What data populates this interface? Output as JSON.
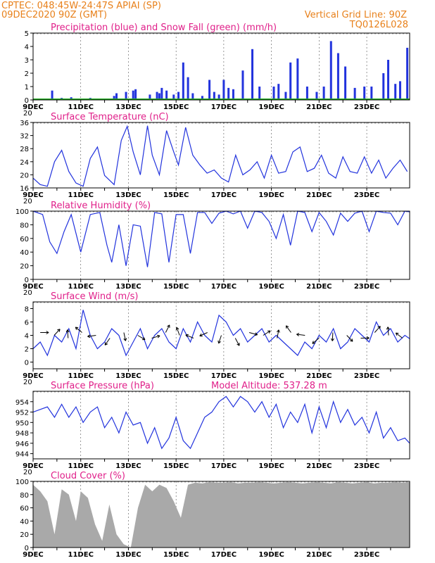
{
  "header": {
    "left_line1": "CPTEC:  048:45W-24:47S  APIAI (SP)",
    "left_line2": "09DEC2020 90Z (GMT)",
    "right_line1": "Vertical Grid Line: 90Z",
    "right_line2": "TQ0126L028"
  },
  "colors": {
    "header": "#e8801a",
    "panel_title": "#e0208a",
    "line": "#2233dd",
    "snow": "#22aa22",
    "cloud": "#a9a9a9"
  },
  "x_axis": {
    "labels": [
      "9DEC",
      "11DEC",
      "13DEC",
      "15DEC",
      "17DEC",
      "19DEC",
      "21DEC",
      "23DEC"
    ],
    "stub_label": "20"
  },
  "chart_data": [
    {
      "type": "bar",
      "title": "Precipitation (blue) and Snow Fall (green) (mm/h)",
      "ylim": [
        0,
        5
      ],
      "yticks": [
        0,
        1,
        2,
        3,
        4,
        5
      ],
      "series": [
        {
          "name": "Precipitation",
          "color": "#2233dd",
          "x": [
            0.8,
            1.2,
            1.6,
            1.8,
            2.4,
            2.9,
            3.4,
            3.5,
            3.9,
            4.2,
            4.3,
            4.9,
            5.2,
            5.3,
            5.4,
            5.6,
            5.9,
            6.1,
            6.3,
            6.5,
            6.7,
            7.1,
            7.4,
            7.6,
            7.8,
            8.0,
            8.2,
            8.4,
            8.8,
            9.2,
            9.5,
            10.1,
            10.3,
            10.6,
            10.8,
            11.1,
            11.5,
            11.9,
            12.2,
            12.5,
            12.8,
            13.1,
            13.5,
            13.9,
            14.2,
            14.7,
            14.9,
            15.2,
            15.4,
            15.7
          ],
          "values": [
            0.7,
            0.15,
            0.2,
            0.1,
            0.15,
            0.1,
            0.3,
            0.5,
            0.6,
            0.7,
            0.8,
            0.4,
            0.6,
            0.5,
            0.9,
            0.7,
            0.4,
            0.6,
            2.8,
            1.7,
            0.5,
            0.3,
            1.5,
            0.6,
            0.4,
            1.5,
            0.9,
            0.8,
            2.2,
            3.8,
            1.0,
            1.0,
            1.2,
            0.6,
            2.8,
            3.1,
            1.0,
            0.6,
            1.0,
            4.4,
            3.5,
            2.5,
            0.9,
            1.0,
            1.0,
            2.0,
            3.0,
            1.2,
            1.4,
            3.9
          ]
        },
        {
          "name": "Snow Fall",
          "color": "#22aa22",
          "x": [
            0,
            15.8
          ],
          "values": [
            0,
            0
          ]
        }
      ]
    },
    {
      "type": "line",
      "title": "Surface Temperature (nC)",
      "ylim": [
        16,
        36
      ],
      "yticks": [
        16,
        20,
        24,
        28,
        32,
        36
      ],
      "series": [
        {
          "name": "Temperature",
          "color": "#2233dd",
          "x": [
            0,
            0.3,
            0.6,
            0.9,
            1.2,
            1.5,
            1.8,
            2.1,
            2.4,
            2.7,
            3.0,
            3.4,
            3.7,
            3.95,
            4.2,
            4.5,
            4.8,
            5.0,
            5.3,
            5.6,
            5.9,
            6.1,
            6.4,
            6.7,
            7.0,
            7.3,
            7.6,
            7.9,
            8.2,
            8.5,
            8.8,
            9.1,
            9.4,
            9.7,
            10.0,
            10.3,
            10.6,
            10.9,
            11.2,
            11.5,
            11.8,
            12.1,
            12.4,
            12.7,
            13.0,
            13.3,
            13.6,
            13.9,
            14.2,
            14.5,
            14.8,
            15.1,
            15.4,
            15.7
          ],
          "values": [
            19,
            17,
            16.5,
            24,
            27.5,
            21,
            17.5,
            16.5,
            25,
            28.5,
            19.8,
            17,
            30.5,
            34.8,
            27,
            20,
            35,
            26,
            20,
            33.5,
            27,
            23,
            34.5,
            26,
            23,
            20.5,
            21.5,
            19,
            17.8,
            26,
            20,
            21.5,
            24,
            19,
            26,
            20.5,
            21,
            27,
            28.5,
            21,
            22,
            26,
            20.5,
            19,
            25.5,
            21,
            20.5,
            25.5,
            20.5,
            24.5,
            19,
            22,
            24.5,
            21
          ]
        }
      ]
    },
    {
      "type": "line",
      "title": "Relative Humidity (%)",
      "ylim": [
        0,
        100
      ],
      "yticks": [
        0,
        20,
        40,
        60,
        80,
        100
      ],
      "series": [
        {
          "name": "Relative Humidity",
          "color": "#2233dd",
          "x": [
            0,
            0.4,
            0.7,
            1.0,
            1.3,
            1.6,
            2.0,
            2.4,
            2.8,
            3.1,
            3.3,
            3.6,
            3.9,
            4.2,
            4.5,
            4.8,
            5.1,
            5.4,
            5.7,
            6.0,
            6.3,
            6.6,
            6.9,
            7.2,
            7.5,
            7.8,
            8.1,
            8.4,
            8.7,
            9.0,
            9.3,
            9.6,
            9.9,
            10.2,
            10.5,
            10.8,
            11.1,
            11.4,
            11.7,
            12.0,
            12.3,
            12.6,
            12.9,
            13.2,
            13.5,
            13.8,
            14.1,
            14.4,
            14.7,
            15.0,
            15.3,
            15.6,
            15.8
          ],
          "values": [
            100,
            95,
            55,
            38,
            70,
            95,
            40,
            95,
            98,
            50,
            25,
            80,
            20,
            80,
            78,
            18,
            98,
            96,
            25,
            95,
            95,
            38,
            98,
            98,
            82,
            97,
            100,
            96,
            100,
            75,
            100,
            98,
            85,
            60,
            95,
            50,
            100,
            98,
            70,
            98,
            85,
            65,
            97,
            85,
            97,
            100,
            70,
            100,
            98,
            97,
            80,
            100,
            99
          ]
        }
      ]
    },
    {
      "type": "line",
      "title": "Surface Wind (m/s)",
      "ylim": [
        -1,
        9
      ],
      "yticks": [
        0,
        2,
        4,
        6,
        8
      ],
      "series": [
        {
          "name": "Wind speed",
          "color": "#2233dd",
          "x": [
            0,
            0.3,
            0.6,
            0.9,
            1.2,
            1.5,
            1.8,
            2.1,
            2.4,
            2.7,
            3.0,
            3.3,
            3.6,
            3.9,
            4.2,
            4.5,
            4.8,
            5.1,
            5.4,
            5.7,
            6.0,
            6.3,
            6.6,
            6.9,
            7.2,
            7.5,
            7.8,
            8.1,
            8.4,
            8.7,
            9.0,
            9.3,
            9.6,
            9.9,
            10.2,
            10.5,
            10.8,
            11.1,
            11.4,
            11.7,
            12.0,
            12.3,
            12.6,
            12.9,
            13.2,
            13.5,
            13.8,
            14.1,
            14.4,
            14.7,
            15.0,
            15.3,
            15.6,
            15.8
          ],
          "values": [
            2,
            3,
            1,
            4,
            3,
            5,
            2,
            7.8,
            4,
            2,
            3,
            5,
            4,
            1,
            3,
            5,
            2,
            4,
            5,
            3,
            2,
            5,
            3,
            6,
            4,
            3,
            7,
            6,
            4,
            5,
            3,
            4,
            5,
            3,
            4,
            3,
            2,
            1,
            3,
            2,
            4,
            3,
            5,
            2,
            3,
            5,
            4,
            3,
            6,
            4,
            5,
            3,
            4,
            3.5
          ]
        }
      ],
      "arrow_count": 27
    },
    {
      "type": "line",
      "title": "Surface Pressure (hPa)",
      "subtitle": "Model Altitude: 537.28 m",
      "ylim": [
        943,
        956
      ],
      "yticks": [
        944,
        946,
        948,
        950,
        952,
        954
      ],
      "series": [
        {
          "name": "Pressure",
          "color": "#2233dd",
          "x": [
            0,
            0.3,
            0.6,
            0.9,
            1.2,
            1.5,
            1.8,
            2.1,
            2.4,
            2.7,
            3.0,
            3.3,
            3.6,
            3.9,
            4.2,
            4.5,
            4.8,
            5.1,
            5.4,
            5.7,
            6.0,
            6.3,
            6.6,
            6.9,
            7.2,
            7.5,
            7.8,
            8.1,
            8.4,
            8.7,
            9.0,
            9.3,
            9.6,
            9.9,
            10.2,
            10.5,
            10.8,
            11.1,
            11.4,
            11.7,
            12.0,
            12.3,
            12.6,
            12.9,
            13.2,
            13.5,
            13.8,
            14.1,
            14.4,
            14.7,
            15.0,
            15.3,
            15.6,
            15.8
          ],
          "values": [
            952,
            952.5,
            953,
            951,
            953.5,
            951,
            953,
            950,
            952,
            953,
            949,
            951,
            948,
            952,
            949.5,
            950,
            946,
            949,
            945,
            947,
            951,
            946.5,
            945,
            948,
            951,
            952,
            954,
            955,
            953,
            955,
            954,
            952,
            954,
            951,
            953.5,
            949,
            952,
            950,
            953.5,
            948,
            953,
            949,
            954,
            950,
            952.5,
            949.5,
            951,
            948,
            952,
            947,
            949,
            946.5,
            947,
            946
          ]
        }
      ]
    },
    {
      "type": "area",
      "title": "Cloud Cover (%)",
      "ylim": [
        0,
        100
      ],
      "yticks": [
        0,
        20,
        40,
        60,
        80,
        100
      ],
      "series": [
        {
          "name": "Cloud Cover",
          "color": "#a9a9a9",
          "x": [
            0,
            0.3,
            0.6,
            0.9,
            1.2,
            1.5,
            1.8,
            2.0,
            2.3,
            2.6,
            2.9,
            3.2,
            3.5,
            3.8,
            4.1,
            4.4,
            4.7,
            5.0,
            5.3,
            5.6,
            5.9,
            6.2,
            6.5,
            6.8,
            7.1,
            7.4,
            7.7,
            8.0,
            8.3,
            8.6,
            8.9,
            9.2,
            9.5,
            9.8,
            10.1,
            10.4,
            10.7,
            11.0,
            11.3,
            11.6,
            11.9,
            12.2,
            12.5,
            12.8,
            13.1,
            13.4,
            13.7,
            14.0,
            14.3,
            14.6,
            14.9,
            15.2,
            15.5,
            15.8
          ],
          "values": [
            95,
            85,
            70,
            20,
            88,
            80,
            40,
            85,
            75,
            35,
            10,
            65,
            20,
            5,
            0,
            60,
            95,
            85,
            95,
            90,
            70,
            45,
            95,
            98,
            97,
            99,
            98,
            98,
            99,
            97,
            98,
            98,
            99,
            98,
            97,
            98,
            99,
            98,
            97,
            98,
            99,
            98,
            97,
            99,
            98,
            97,
            98,
            99,
            97,
            98,
            98,
            99,
            98,
            99
          ]
        }
      ]
    }
  ]
}
